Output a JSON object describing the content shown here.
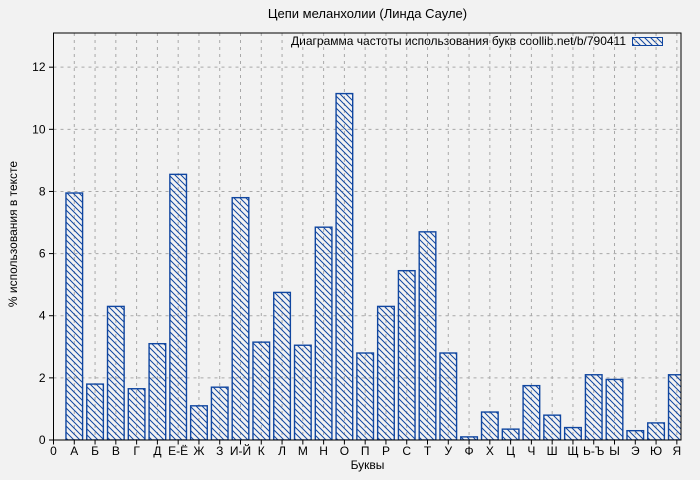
{
  "figure": {
    "title": "Цепи меланхолии (Линда Сауле)"
  },
  "chart_data": {
    "type": "bar",
    "title": "Цепи меланхолии (Линда Сауле)",
    "legend": {
      "label": "Диаграмма частоты использования букв coollib.net/b/790411",
      "position": "top-right",
      "swatch": "blue-hatched-rect"
    },
    "xlabel": "Буквы",
    "ylabel": "% использования в тексте",
    "origin_tick_label": "0",
    "categories": [
      "А",
      "Б",
      "В",
      "Г",
      "Д",
      "Е-Ё",
      "Ж",
      "З",
      "И-Й",
      "К",
      "Л",
      "М",
      "Н",
      "О",
      "П",
      "Р",
      "С",
      "Т",
      "У",
      "Ф",
      "Х",
      "Ц",
      "Ч",
      "Ш",
      "Щ",
      "Ь-Ъ",
      "Ы",
      "Э",
      "Ю",
      "Я"
    ],
    "values": [
      7.95,
      1.8,
      4.3,
      1.65,
      3.1,
      8.55,
      1.1,
      1.7,
      7.8,
      3.15,
      4.75,
      3.05,
      6.85,
      11.15,
      2.8,
      4.3,
      5.45,
      6.7,
      2.8,
      0.1,
      0.9,
      0.35,
      1.75,
      0.8,
      0.4,
      2.1,
      1.95,
      0.3,
      0.55,
      2.1
    ],
    "yticks": [
      0,
      2,
      4,
      6,
      8,
      10,
      12
    ],
    "ylim": [
      0,
      13.1
    ],
    "xlim": [
      0,
      30.2
    ],
    "grid": true,
    "hatch_style": "diagonal-down-right",
    "colors": {
      "bar_border": "#1046a0",
      "bar_hatch": "#1046a0",
      "bar_fill": "#fdfdfd",
      "grid_line": "#a8a8a8",
      "frame": "#000000",
      "text": "#000000",
      "background": "#f2f2f2"
    }
  }
}
